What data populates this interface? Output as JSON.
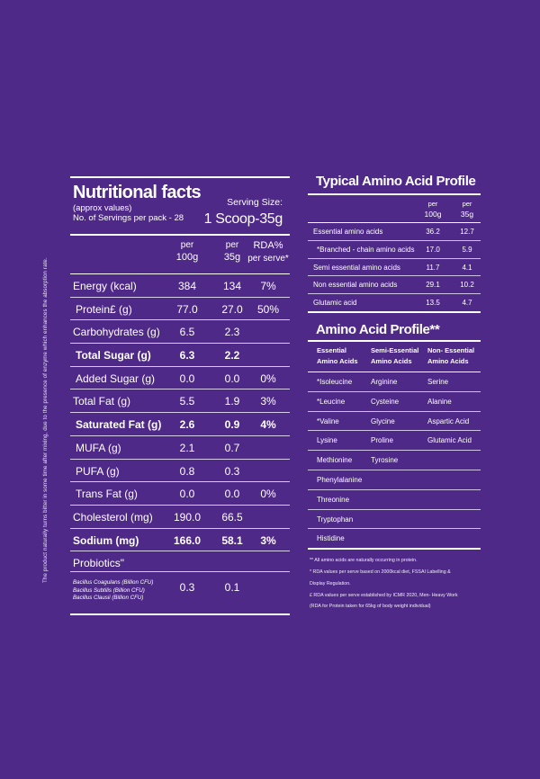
{
  "side_note": "The product naturally turns bitter in some time after mixing, due to the presence of enzyme which enhances the absorption rate.",
  "nutrition": {
    "title": "Nutritional facts",
    "approx": "(approx values)",
    "servings": "No. of Servings per pack - 28",
    "serving_size_label": "Serving Size:",
    "serving_size_value": "1 Scoop-35g",
    "col1": [
      "per",
      "100g"
    ],
    "col2": [
      "per",
      "35g"
    ],
    "col3": [
      "RDA%",
      "per serve*"
    ],
    "rows": [
      {
        "label": "Energy (kcal)",
        "per100": "384",
        "per35": "134",
        "rda": "7%",
        "bold": false,
        "indent": false
      },
      {
        "label": "Protein£ (g)",
        "per100": "77.0",
        "per35": "27.0",
        "rda": "50%",
        "bold": false,
        "indent": true
      },
      {
        "label": "Carbohydrates (g)",
        "per100": "6.5",
        "per35": "2.3",
        "rda": "",
        "bold": false,
        "indent": false
      },
      {
        "label": "Total Sugar (g)",
        "per100": "6.3",
        "per35": "2.2",
        "rda": "",
        "bold": true,
        "indent": true
      },
      {
        "label": "Added Sugar (g)",
        "per100": "0.0",
        "per35": "0.0",
        "rda": "0%",
        "bold": false,
        "indent": true
      },
      {
        "label": "Total Fat (g)",
        "per100": "5.5",
        "per35": "1.9",
        "rda": "3%",
        "bold": false,
        "indent": false
      },
      {
        "label": "Saturated Fat (g)",
        "per100": "2.6",
        "per35": "0.9",
        "rda": "4%",
        "bold": true,
        "indent": true
      },
      {
        "label": "MUFA (g)",
        "per100": "2.1",
        "per35": "0.7",
        "rda": "",
        "bold": false,
        "indent": true
      },
      {
        "label": "PUFA (g)",
        "per100": "0.8",
        "per35": "0.3",
        "rda": "",
        "bold": false,
        "indent": true
      },
      {
        "label": "Trans Fat (g)",
        "per100": "0.0",
        "per35": "0.0",
        "rda": "0%",
        "bold": false,
        "indent": true
      },
      {
        "label": "Cholesterol (mg)",
        "per100": "190.0",
        "per35": "66.5",
        "rda": "",
        "bold": false,
        "indent": false
      },
      {
        "label": "Sodium (mg)",
        "per100": "166.0",
        "per35": "58.1",
        "rda": "3%",
        "bold": true,
        "indent": false
      }
    ],
    "probiotics_label": "Probiotics\"",
    "bacillus": [
      "Bacillus Coagulans (Billion CFU)",
      "Bacillus Subtilis (Billion CFU)",
      "Bacillus Clausii (Billion CFU)"
    ],
    "bacillus_per100": "0.3",
    "bacillus_per35": "0.1"
  },
  "amino_typical": {
    "title": "Typical Amino Acid Profile",
    "col1": [
      "per",
      "100g"
    ],
    "col2": [
      "per",
      "35g"
    ],
    "rows": [
      {
        "label": "Essential amino acids",
        "per100": "36.2",
        "per35": "12.7",
        "indent": false
      },
      {
        "label": "*Branched - chain amino acids",
        "per100": "17.0",
        "per35": "5.9",
        "indent": true
      },
      {
        "label": "Semi essential amino acids",
        "per100": "11.7",
        "per35": "4.1",
        "indent": false
      },
      {
        "label": "Non essential amino acids",
        "per100": "29.1",
        "per35": "10.2",
        "indent": false
      },
      {
        "label": "Glutamic acid",
        "per100": "13.5",
        "per35": "4.7",
        "indent": false
      }
    ]
  },
  "amino_profile": {
    "title": "Amino Acid Profile**",
    "headers": [
      "Essential\nAmino Acids",
      "Semi-Essential\nAmino Acids",
      "Non- Essential\nAmino Acids"
    ],
    "rows": [
      [
        "*Isoleucine",
        "Arginine",
        "Serine"
      ],
      [
        "*Leucine",
        "Cysteine",
        "Alanine"
      ],
      [
        "*Valine",
        "Glycine",
        "Aspartic Acid"
      ],
      [
        "Lysine",
        "Proline",
        "Glutamic Acid"
      ],
      [
        "Methionine",
        "Tyrosine",
        ""
      ],
      [
        "Phenylalanine",
        "",
        ""
      ],
      [
        "Threonine",
        "",
        ""
      ],
      [
        "Tryptophan",
        "",
        ""
      ],
      [
        "Histidine",
        "",
        ""
      ]
    ]
  },
  "notes": [
    "** All amino acids are naturally occurring in protein.",
    "* RDA values per serve based on 2000kcal diet, FSSAI Labelling &",
    "Display Regulation.",
    "£ RDA values per serve established by ICMR 2020, Men- Heavy Work",
    "(RDA for Protein taken for 65kg of body weight individual)"
  ]
}
